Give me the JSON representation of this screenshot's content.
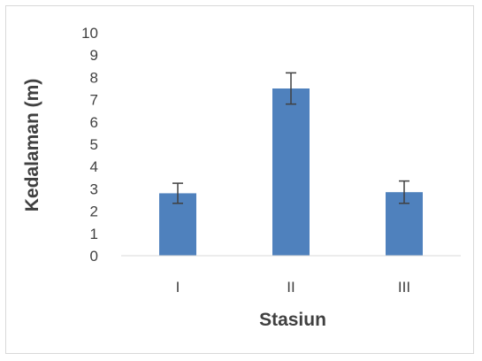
{
  "chart_data": {
    "type": "bar",
    "title": "",
    "xlabel": "Stasiun",
    "ylabel": "Kedalaman (m)",
    "categories": [
      "I",
      "II",
      "III"
    ],
    "values": [
      2.8,
      7.5,
      2.85
    ],
    "error": [
      0.45,
      0.7,
      0.5
    ],
    "ylim": [
      0,
      10
    ],
    "yticks": [
      0,
      1,
      2,
      3,
      4,
      5,
      6,
      7,
      8,
      9,
      10
    ],
    "grid": false,
    "legend": "none",
    "bar_color": "#4f81bd",
    "error_color": "#404040"
  }
}
